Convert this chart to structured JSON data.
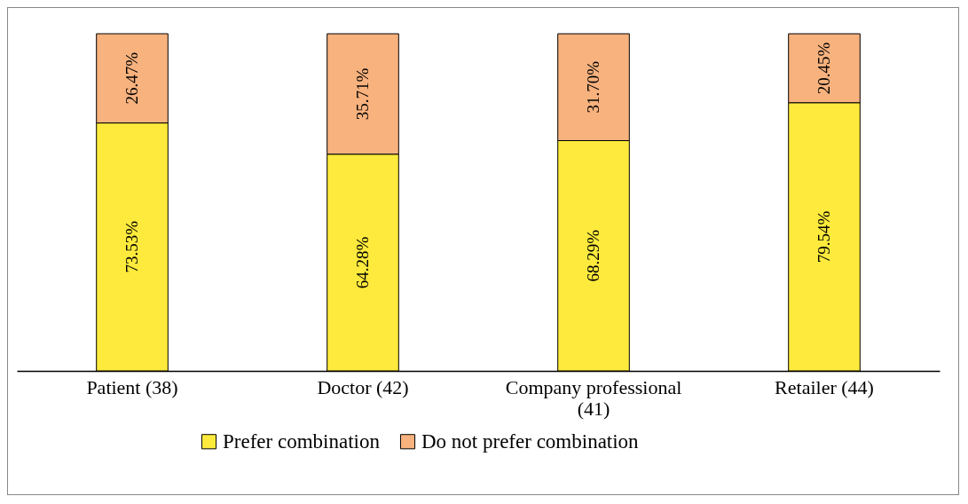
{
  "chart_data": {
    "type": "bar",
    "stacked": true,
    "legend": "bottom",
    "categories": [
      "Patient (38)",
      "Doctor (42)",
      "Company professional (41)",
      "Retailer (44)"
    ],
    "series": [
      {
        "name": "Prefer combination",
        "color": "#fdea3c",
        "values": [
          73.53,
          64.28,
          68.29,
          79.54
        ],
        "value_labels": [
          "73.53%",
          "64.28%",
          "68.29%",
          "79.54%"
        ]
      },
      {
        "name": "Do not prefer combination",
        "color": "#f8b27e",
        "values": [
          26.47,
          35.71,
          31.7,
          20.45
        ],
        "value_labels": [
          "26.47%",
          "35.71%",
          "31.70%",
          "20.45%"
        ]
      }
    ]
  }
}
